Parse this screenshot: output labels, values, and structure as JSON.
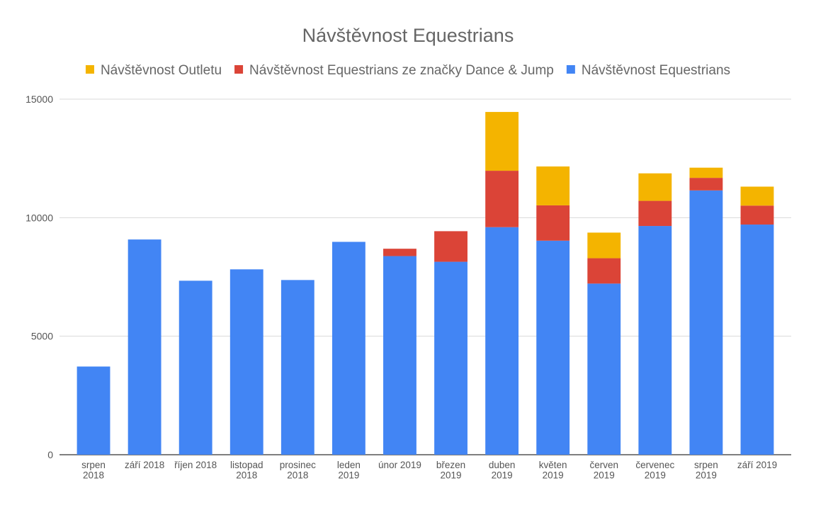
{
  "chart_data": {
    "type": "bar",
    "stacked": true,
    "title": "Návštěvnost Equestrians",
    "xlabel": "",
    "ylabel": "",
    "ylim": [
      0,
      15000
    ],
    "yticks": [
      "0",
      "5000",
      "10000",
      "15000"
    ],
    "grid": true,
    "legend_position": "top",
    "categories": [
      [
        "srpen",
        "2018"
      ],
      [
        "září 2018"
      ],
      [
        "říjen 2018"
      ],
      [
        "listopad",
        "2018"
      ],
      [
        "prosinec",
        "2018"
      ],
      [
        "leden",
        "2019"
      ],
      [
        "únor 2019"
      ],
      [
        "březen",
        "2019"
      ],
      [
        "duben",
        "2019"
      ],
      [
        "květen",
        "2019"
      ],
      [
        "červen",
        "2019"
      ],
      [
        "červenec",
        "2019"
      ],
      [
        "srpen",
        "2019"
      ],
      [
        "září 2019"
      ]
    ],
    "series": [
      {
        "name": "Návštěvnost Equestrians",
        "color": "#4285F4",
        "values": [
          3720,
          9080,
          7340,
          7820,
          7370,
          8980,
          8380,
          8140,
          9600,
          9030,
          7220,
          9650,
          11150,
          9710
        ]
      },
      {
        "name": "Návštěvnost Equestrians ze značky Dance & Jump",
        "color": "#DB4437",
        "values": [
          0,
          0,
          0,
          0,
          0,
          0,
          310,
          1290,
          2380,
          1490,
          1070,
          1060,
          530,
          800
        ]
      },
      {
        "name": "Návštěvnost Outletu",
        "color": "#F4B400",
        "values": [
          0,
          0,
          0,
          0,
          0,
          0,
          0,
          0,
          2480,
          1640,
          1080,
          1160,
          430,
          800
        ]
      }
    ],
    "legend_order": [
      "Návštěvnost Outletu",
      "Návštěvnost Equestrians ze značky Dance & Jump",
      "Návštěvnost Equestrians"
    ]
  }
}
